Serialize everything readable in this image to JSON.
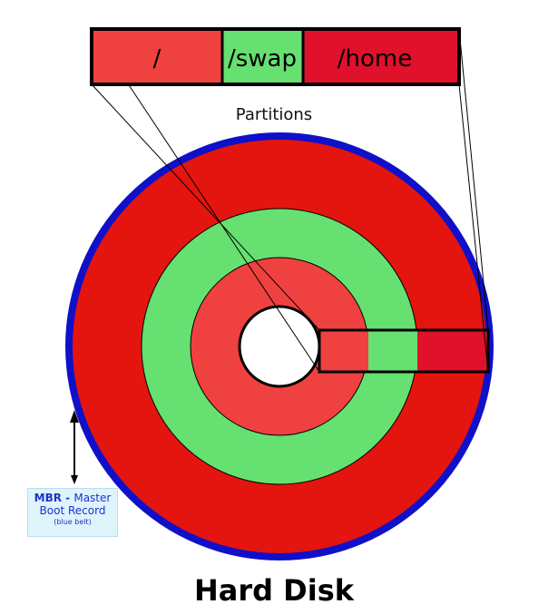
{
  "partitions_bar": {
    "segments": [
      {
        "label": "/",
        "color": "#ef4140"
      },
      {
        "label": "/swap",
        "color": "#66e070"
      },
      {
        "label": "/home",
        "color": "#e0112b"
      }
    ]
  },
  "partitions_label": "Partitions",
  "disk": {
    "mbr_color": "#1010c8",
    "outer_color": "#e4140e",
    "swap_color": "#66e070",
    "root_color": "#ef4140",
    "hub_color": "#ffffff"
  },
  "mbr": {
    "line1_bold": "MBR - ",
    "line1_rest": "Master",
    "line2": "Boot Record",
    "line3": "(blue belt)"
  },
  "title": "Hard Disk"
}
